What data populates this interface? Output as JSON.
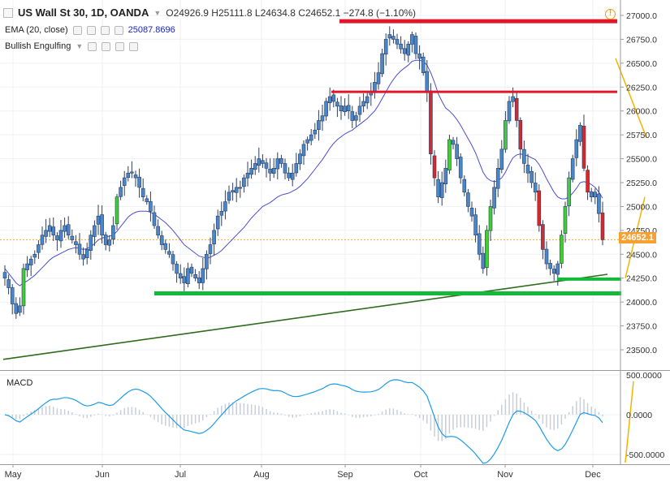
{
  "header": {
    "symbol": "US Wall St 30, 1D, OANDA",
    "ohlc": "O24926.9  H25111.8  L24634.8  C24652.1  −274.8 (−1.10%)",
    "ema_label": "EMA (20, close)",
    "ema_value": "25087.8696",
    "pattern_label": "Bullish Engulfing"
  },
  "price_tag": "24652.1",
  "macd_label": "MACD",
  "colors": {
    "up": "#3fce34",
    "down": "#d9272e",
    "neutral": "#4a86c8",
    "ema": "#4b4fd0",
    "resistance": "#e0162b",
    "support": "#14b83a",
    "trend": "#2f6b1d",
    "yellow": "#f5b300",
    "macd": "#1e9be8",
    "price_line": "#f7a030"
  },
  "chart_data": [
    {
      "type": "candlestick",
      "title": "US Wall St 30, 1D, OANDA",
      "x_ticks": [
        "May",
        "Jun",
        "Jul",
        "Aug",
        "Sep",
        "Oct",
        "Nov",
        "Dec"
      ],
      "y_ticks": [
        "23500.0",
        "23750.0",
        "24000.0",
        "24250.0",
        "24500.0",
        "24750.0",
        "25000.0",
        "25250.0",
        "25500.0",
        "25750.0",
        "26000.0",
        "26250.0",
        "26500.0",
        "26750.0",
        "27000.0"
      ],
      "ylim": [
        23400,
        27050
      ],
      "last_close": 24652.1,
      "closes": [
        24250,
        24150,
        23980,
        23880,
        23960,
        24350,
        24400,
        24450,
        24500,
        24600,
        24700,
        24750,
        24800,
        24700,
        24650,
        24750,
        24800,
        24700,
        24650,
        24600,
        24500,
        24450,
        24550,
        24700,
        24800,
        24900,
        24700,
        24600,
        24650,
        24800,
        25100,
        25200,
        25300,
        25350,
        25350,
        25300,
        25200,
        25100,
        25050,
        24950,
        24800,
        24700,
        24600,
        24550,
        24500,
        24400,
        24300,
        24250,
        24200,
        24350,
        24300,
        24250,
        24200,
        24350,
        24500,
        24600,
        24750,
        24900,
        24950,
        25050,
        25150,
        25150,
        25200,
        25200,
        25300,
        25350,
        25400,
        25450,
        25500,
        25450,
        25400,
        25350,
        25400,
        25500,
        25450,
        25350,
        25300,
        25350,
        25450,
        25550,
        25650,
        25700,
        25750,
        25800,
        25900,
        25950,
        26100,
        26150,
        26100,
        26050,
        26000,
        26050,
        26000,
        25900,
        25950,
        26050,
        26100,
        26150,
        26200,
        26300,
        26400,
        26600,
        26750,
        26800,
        26750,
        26700,
        26650,
        26600,
        26700,
        26800,
        26600,
        26550,
        26400,
        26200,
        25550,
        25300,
        25100,
        25250,
        25400,
        25700,
        25650,
        25500,
        25300,
        25150,
        25000,
        24900,
        24700,
        24500,
        24350,
        24750,
        25000,
        25200,
        25400,
        25600,
        25900,
        26100,
        26150,
        25900,
        25600,
        25450,
        25350,
        25250,
        25150,
        24800,
        24550,
        24400,
        24350,
        24300,
        24400,
        24700,
        25000,
        25300,
        25500,
        25700,
        25850,
        25400,
        25150,
        25100,
        25150,
        24926,
        24652
      ],
      "ema20": [
        24350,
        24300,
        24250,
        24200,
        24170,
        24200,
        24220,
        24250,
        24280,
        24320,
        24360,
        24400,
        24440,
        24470,
        24490,
        24510,
        24530,
        24550,
        24560,
        24570,
        24560,
        24550,
        24560,
        24580,
        24610,
        24650,
        24670,
        24680,
        24690,
        24700,
        24740,
        24790,
        24840,
        24890,
        24920,
        24940,
        24950,
        24950,
        24950,
        24940,
        24920,
        24890,
        24860,
        24830,
        24790,
        24750,
        24700,
        24650,
        24600,
        24570,
        24540,
        24510,
        24480,
        24470,
        24460,
        24470,
        24490,
        24510,
        24540,
        24580,
        24620,
        24660,
        24700,
        24740,
        24780,
        24830,
        24880,
        24920,
        24960,
        25000,
        25020,
        25040,
        25070,
        25100,
        25120,
        25130,
        25140,
        25160,
        25180,
        25210,
        25250,
        25290,
        25340,
        25390,
        25440,
        25490,
        25550,
        25610,
        25660,
        25700,
        25730,
        25760,
        25780,
        25800,
        25830,
        25860,
        25890,
        25920,
        25960,
        26000,
        26060,
        26130,
        26200,
        26270,
        26330,
        26380,
        26420,
        26450,
        26480,
        26520,
        26530,
        26530,
        26520,
        26480,
        26400,
        26300,
        26180,
        26100,
        26030,
        26000,
        25960,
        25910,
        25850,
        25780,
        25710,
        25640,
        25560,
        25460,
        25360,
        25300,
        25270,
        25260,
        25270,
        25300,
        25360,
        25440,
        25510,
        25540,
        25550,
        25540,
        25530,
        25510,
        25490,
        25440,
        25370,
        25290,
        25220,
        25150,
        25100,
        25080,
        25080,
        25100,
        25140,
        25190,
        25250,
        25260,
        25250,
        25230,
        25200,
        25150,
        25088
      ]
    },
    {
      "type": "line",
      "title": "MACD",
      "y_ticks": [
        "500.0000",
        "0.0000",
        "-500.0000"
      ],
      "ylim": [
        -580,
        560
      ]
    }
  ]
}
